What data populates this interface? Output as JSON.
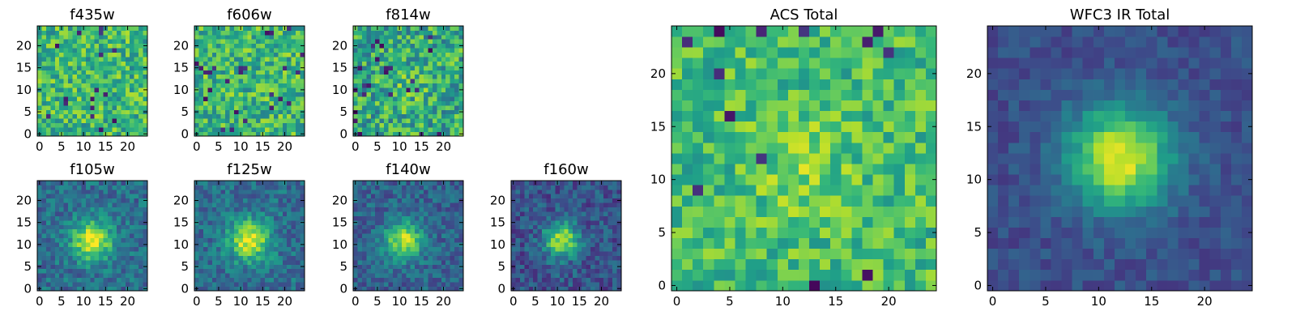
{
  "chart_data": [
    {
      "type": "heatmap",
      "title": "f435w",
      "xticks": [
        "0",
        "5",
        "10",
        "15",
        "20"
      ],
      "yticks": [
        "0",
        "5",
        "10",
        "15",
        "20"
      ],
      "xlim": [
        -0.5,
        24.5
      ],
      "ylim": [
        -0.5,
        24.5
      ],
      "grid": false,
      "colormap": "viridis",
      "pattern": "noise",
      "noise_amplitude": 0.45,
      "background_level": 0.66,
      "source_peak": 0,
      "source_center": [
        12,
        11
      ],
      "source_sigma": 3.0,
      "seed": 11,
      "dark_pixel_rate": 0.03
    },
    {
      "type": "heatmap",
      "title": "f606w",
      "xticks": [
        "0",
        "5",
        "10",
        "15",
        "20"
      ],
      "yticks": [
        "0",
        "5",
        "10",
        "15",
        "20"
      ],
      "xlim": [
        -0.5,
        24.5
      ],
      "ylim": [
        -0.5,
        24.5
      ],
      "grid": false,
      "colormap": "viridis",
      "pattern": "noise",
      "noise_amplitude": 0.45,
      "background_level": 0.66,
      "source_peak": 0,
      "source_center": [
        12,
        11
      ],
      "source_sigma": 3.0,
      "seed": 23,
      "dark_pixel_rate": 0.03
    },
    {
      "type": "heatmap",
      "title": "f814w",
      "xticks": [
        "0",
        "5",
        "10",
        "15",
        "20"
      ],
      "yticks": [
        "0",
        "5",
        "10",
        "15",
        "20"
      ],
      "xlim": [
        -0.5,
        24.5
      ],
      "ylim": [
        -0.5,
        24.5
      ],
      "grid": false,
      "colormap": "viridis",
      "pattern": "noise",
      "noise_amplitude": 0.5,
      "background_level": 0.6,
      "source_peak": 0.1,
      "source_center": [
        12,
        11
      ],
      "source_sigma": 3.0,
      "seed": 37,
      "dark_pixel_rate": 0.04
    },
    {
      "type": "heatmap",
      "title": "f105w",
      "xticks": [
        "0",
        "5",
        "10",
        "15",
        "20"
      ],
      "yticks": [
        "0",
        "5",
        "10",
        "15",
        "20"
      ],
      "xlim": [
        -0.5,
        24.5
      ],
      "ylim": [
        -0.5,
        24.5
      ],
      "grid": false,
      "colormap": "viridis",
      "pattern": "source",
      "noise_amplitude": 0.3,
      "background_level": 0.36,
      "source_peak": 0.62,
      "source_center": [
        12,
        11
      ],
      "source_sigma": 3.2,
      "seed": 41,
      "dark_pixel_rate": 0
    },
    {
      "type": "heatmap",
      "title": "f125w",
      "xticks": [
        "0",
        "5",
        "10",
        "15",
        "20"
      ],
      "yticks": [
        "0",
        "5",
        "10",
        "15",
        "20"
      ],
      "xlim": [
        -0.5,
        24.5
      ],
      "ylim": [
        -0.5,
        24.5
      ],
      "grid": false,
      "colormap": "viridis",
      "pattern": "source",
      "noise_amplitude": 0.3,
      "background_level": 0.36,
      "source_peak": 0.62,
      "source_center": [
        12,
        11
      ],
      "source_sigma": 3.2,
      "seed": 53,
      "dark_pixel_rate": 0
    },
    {
      "type": "heatmap",
      "title": "f140w",
      "xticks": [
        "0",
        "5",
        "10",
        "15",
        "20"
      ],
      "yticks": [
        "0",
        "5",
        "10",
        "15",
        "20"
      ],
      "xlim": [
        -0.5,
        24.5
      ],
      "ylim": [
        -0.5,
        24.5
      ],
      "grid": false,
      "colormap": "viridis",
      "pattern": "source",
      "noise_amplitude": 0.28,
      "background_level": 0.32,
      "source_peak": 0.58,
      "source_center": [
        11,
        11
      ],
      "source_sigma": 3.0,
      "seed": 67,
      "dark_pixel_rate": 0
    },
    {
      "type": "heatmap",
      "title": "f160w",
      "xticks": [
        "0",
        "5",
        "10",
        "15",
        "20"
      ],
      "yticks": [
        "0",
        "5",
        "10",
        "15",
        "20"
      ],
      "xlim": [
        -0.5,
        24.5
      ],
      "ylim": [
        -0.5,
        24.5
      ],
      "grid": false,
      "colormap": "viridis",
      "pattern": "source",
      "noise_amplitude": 0.3,
      "background_level": 0.26,
      "source_peak": 0.62,
      "source_center": [
        11,
        11
      ],
      "source_sigma": 2.8,
      "seed": 79,
      "dark_pixel_rate": 0
    },
    {
      "type": "heatmap",
      "title": "ACS Total",
      "xticks": [
        "0",
        "5",
        "10",
        "15",
        "20"
      ],
      "yticks": [
        "0",
        "5",
        "10",
        "15",
        "20"
      ],
      "xlim": [
        -0.5,
        24.5
      ],
      "ylim": [
        -0.5,
        24.5
      ],
      "grid": false,
      "colormap": "viridis",
      "pattern": "noise",
      "noise_amplitude": 0.36,
      "background_level": 0.68,
      "source_peak": 0.12,
      "source_center": [
        12,
        11
      ],
      "source_sigma": 3.5,
      "seed": 97,
      "dark_pixel_rate": 0.02
    },
    {
      "type": "heatmap",
      "title": "WFC3 IR Total",
      "xticks": [
        "0",
        "5",
        "10",
        "15",
        "20"
      ],
      "yticks": [
        "0",
        "5",
        "10",
        "15",
        "20"
      ],
      "xlim": [
        -0.5,
        24.5
      ],
      "ylim": [
        -0.5,
        24.5
      ],
      "grid": false,
      "colormap": "viridis",
      "pattern": "source",
      "noise_amplitude": 0.16,
      "background_level": 0.24,
      "source_peak": 0.72,
      "source_center": [
        12,
        12
      ],
      "source_sigma": 3.4,
      "seed": 113,
      "dark_pixel_rate": 0
    }
  ]
}
